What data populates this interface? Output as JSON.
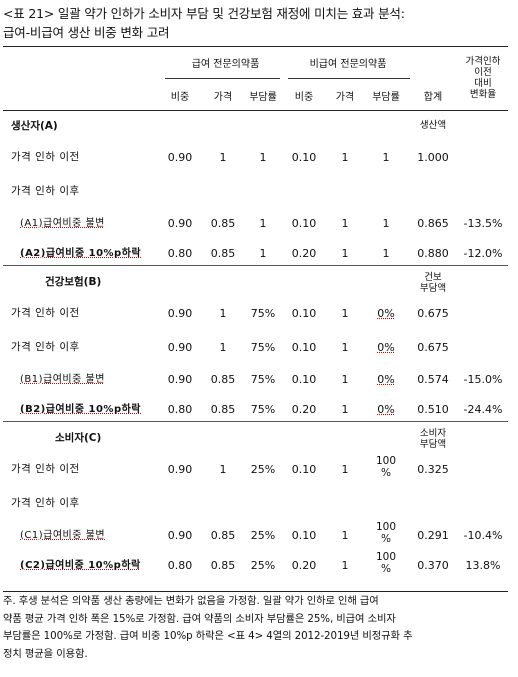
{
  "title_lines": [
    "<표 21> 일괄 약가 인하가 소비자 부담 및 건강보험 재정에 미치는 효과 분석:",
    "급여-비급여 생산 비중 변화 고려"
  ],
  "header": {
    "group_covered": "급여 전문의약품",
    "group_noncovered": "비급여 전문의약품",
    "sub": [
      "비중",
      "가격",
      "부담률",
      "비중",
      "가격",
      "부담률"
    ],
    "total": "합계",
    "change_lines": [
      "가격인하",
      "이전",
      "대비",
      "변화율"
    ]
  },
  "sections": [
    {
      "title": "생산자(A)",
      "measure": [
        "생산액"
      ],
      "rows": [
        {
          "label": "가격 인하 이전",
          "cells": [
            "0.90",
            "1",
            "1",
            "0.10",
            "1",
            "1",
            "1.000",
            ""
          ]
        },
        {
          "label": "가격 인하 이후",
          "cells": [
            "",
            "",
            "",
            "",
            "",
            "",
            "",
            ""
          ]
        },
        {
          "label": "(A1)급여비중 불변",
          "cells": [
            "0.90",
            "0.85",
            "1",
            "0.10",
            "1",
            "1",
            "0.865",
            "-13.5%"
          ]
        },
        {
          "label": "(A2)급여비중 10%p하락",
          "cells": [
            "0.80",
            "0.85",
            "1",
            "0.20",
            "1",
            "1",
            "0.880",
            "-12.0%"
          ]
        }
      ]
    },
    {
      "title": "건강보험(B)",
      "measure": [
        "건보",
        "부담액"
      ],
      "rows": [
        {
          "label": "가격 인하 이전",
          "cells": [
            "0.90",
            "1",
            "75%",
            "0.10",
            "1",
            "0%",
            "0.675",
            ""
          ]
        },
        {
          "label": "가격 인하 이후",
          "cells": [
            "0.90",
            "1",
            "75%",
            "0.10",
            "1",
            "0%",
            "0.675",
            ""
          ]
        },
        {
          "label": "(B1)급여비중 불변",
          "cells": [
            "0.90",
            "0.85",
            "75%",
            "0.10",
            "1",
            "0%",
            "0.574",
            "-15.0%"
          ]
        },
        {
          "label": "(B2)급여비중 10%p하락",
          "cells": [
            "0.80",
            "0.85",
            "75%",
            "0.20",
            "1",
            "0%",
            "0.510",
            "-24.4%"
          ]
        }
      ]
    },
    {
      "title": "소비자(C)",
      "measure": [
        "소비자",
        "부담액"
      ],
      "rows": [
        {
          "label": "가격 인하 이전",
          "cells": [
            "0.90",
            "1",
            "25%",
            "0.10",
            "1",
            "100\n%",
            "0.325",
            ""
          ]
        },
        {
          "label": "가격 인하 이후",
          "cells": [
            "",
            "",
            "",
            "",
            "",
            "",
            "",
            ""
          ]
        },
        {
          "label": "(C1)급여비중 불변",
          "cells": [
            "0.90",
            "0.85",
            "25%",
            "0.10",
            "1",
            "100\n%",
            "0.291",
            "-10.4%"
          ]
        },
        {
          "label": "(C2)급여비중 10%p하락",
          "cells": [
            "0.80",
            "0.85",
            "25%",
            "0.20",
            "1",
            "100\n%",
            "0.370",
            "13.8%"
          ]
        }
      ]
    }
  ],
  "note_lines": [
    "주. 후생 분석은 의약품 생산 총량에는 변화가 없음을 가정함. 일괄 약가 인하로 인해 급여",
    "약품 평균 가격 인하 폭은 15%로 가정함. 급여 약품의 소비자 부담률은 25%, 비급여 소비자",
    "부담률은 100%로 가정함. 급여 비중 10%p 하락은 <표 4> 4열의 2012-2019년 비정규화 추",
    "정치 평균을 이용함."
  ]
}
